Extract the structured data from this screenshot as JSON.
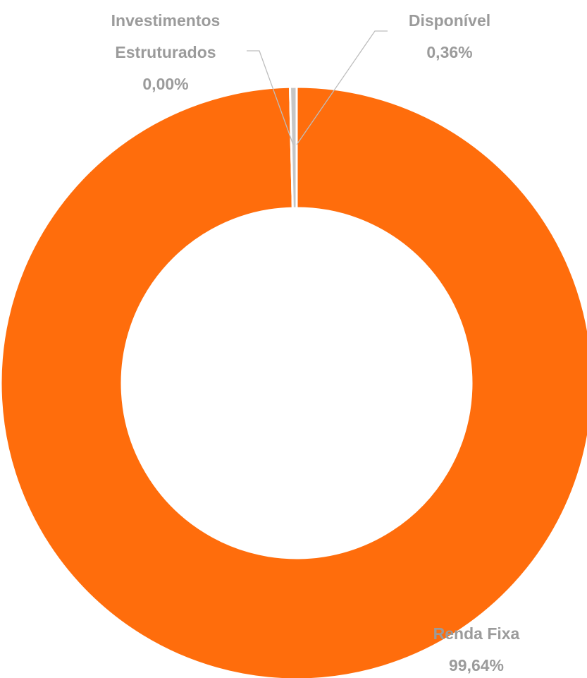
{
  "chart_data": {
    "type": "pie",
    "variant": "donut",
    "title": "",
    "series": [
      {
        "name": "Renda Fixa",
        "value": 99.64,
        "label": "Renda Fixa",
        "value_label": "99,64%",
        "color": "#ff6d0c"
      },
      {
        "name": "Investimentos Estruturados",
        "value": 0.0,
        "label_lines": [
          "Investimentos",
          "Estruturados"
        ],
        "value_label": "0,00%",
        "color": "#c6c6c6"
      },
      {
        "name": "Disponível",
        "value": 0.36,
        "label": "Disponível",
        "value_label": "0,36%",
        "color": "#c6c6c6"
      }
    ],
    "legend": "none",
    "label_color": "#9b9b9b"
  }
}
